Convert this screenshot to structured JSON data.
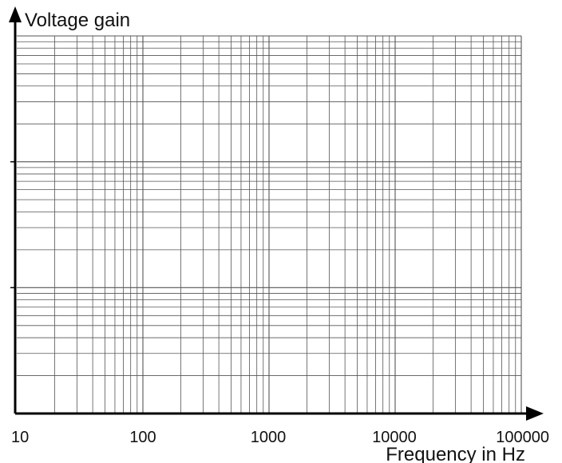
{
  "chart_data": {
    "type": "line",
    "title": "",
    "xlabel": "Frequency in Hz",
    "ylabel": "Voltage gain",
    "x_scale": "log",
    "y_scale": "log",
    "xlim": [
      10,
      100000
    ],
    "x_ticks": [
      "10",
      "100",
      "1000",
      "10000",
      "100000"
    ],
    "y_decades": 3,
    "grid": true,
    "series": [],
    "colors": {
      "grid": "#555555",
      "axis": "#000000",
      "text": "#111111"
    }
  }
}
